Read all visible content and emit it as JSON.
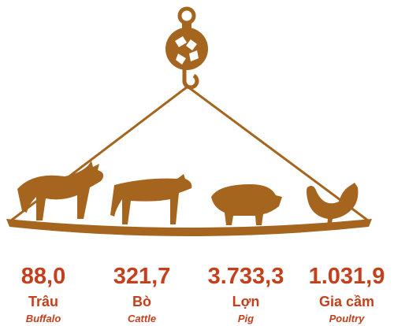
{
  "items": [
    {
      "value": "88,0",
      "name": "Trâu",
      "name_en": "Buffalo"
    },
    {
      "value": "321,7",
      "name": "Bò",
      "name_en": "Cattle"
    },
    {
      "value": "3.733,3",
      "name": "Lợn",
      "name_en": "Pig"
    },
    {
      "value": "1.031,9",
      "name": "Gia cầm",
      "name_en": "Poultry"
    }
  ]
}
